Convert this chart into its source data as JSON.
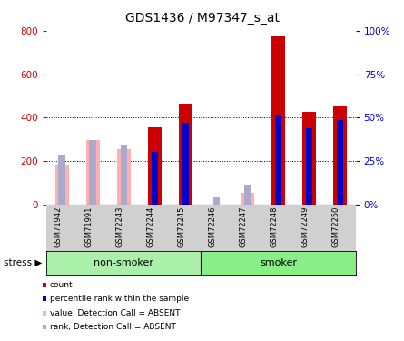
{
  "title": "GDS1436 / M97347_s_at",
  "samples": [
    "GSM71942",
    "GSM71991",
    "GSM72243",
    "GSM72244",
    "GSM72245",
    "GSM72246",
    "GSM72247",
    "GSM72248",
    "GSM72249",
    "GSM72250"
  ],
  "count": [
    0,
    0,
    0,
    355,
    465,
    0,
    0,
    775,
    425,
    450
  ],
  "percentile_rank": [
    230,
    295,
    280,
    243,
    375,
    35,
    0,
    410,
    350,
    390
  ],
  "value_absent": [
    180,
    295,
    255,
    0,
    0,
    0,
    55,
    0,
    0,
    0
  ],
  "rank_absent": [
    230,
    295,
    278,
    0,
    0,
    35,
    90,
    0,
    0,
    0
  ],
  "absent_mask": [
    true,
    true,
    true,
    false,
    false,
    true,
    true,
    false,
    false,
    false
  ],
  "ylim_left": [
    0,
    800
  ],
  "ylim_right": [
    0,
    100
  ],
  "yticks_left": [
    0,
    200,
    400,
    600,
    800
  ],
  "yticks_right": [
    0,
    25,
    50,
    75,
    100
  ],
  "ytick_labels_right": [
    "0%",
    "25%",
    "50%",
    "75%",
    "100%"
  ],
  "color_count": "#cc0000",
  "color_rank": "#0000cc",
  "color_value_absent": "#ffb0b0",
  "color_rank_absent": "#aaaacc",
  "nonsmoker_color": "#aaf0aa",
  "smoker_color": "#88ee88",
  "gray_bg": "#d0d0d0"
}
